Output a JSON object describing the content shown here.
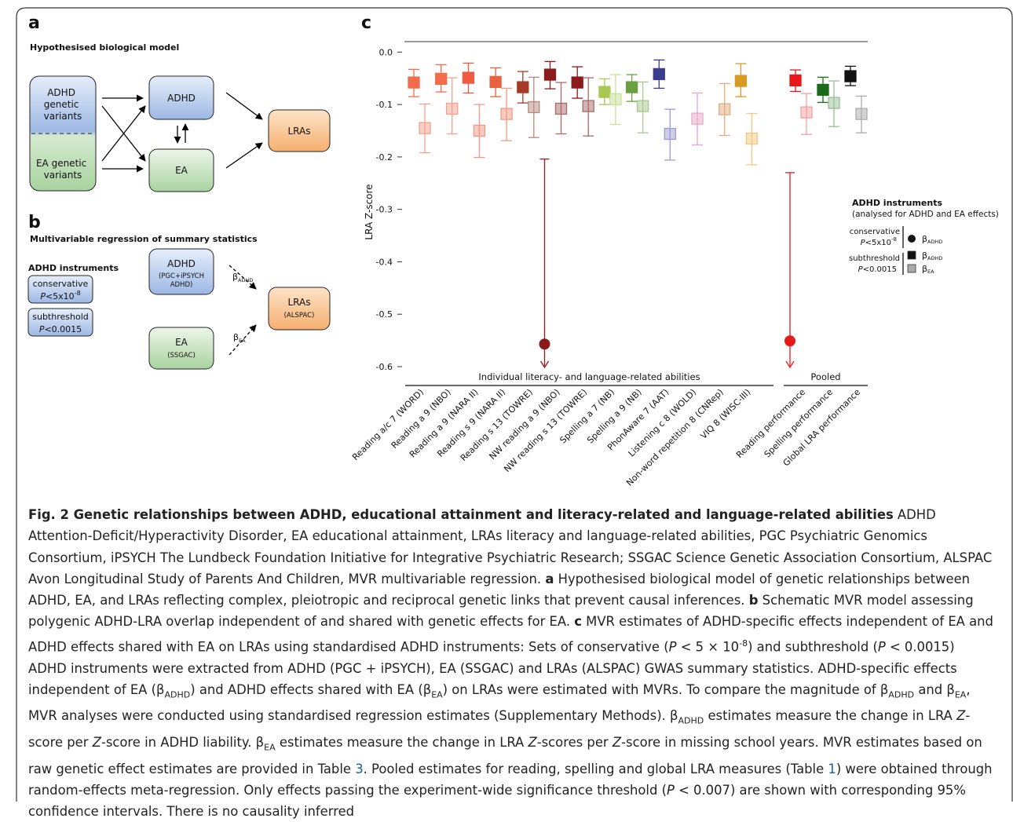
{
  "panel_a": {
    "label": "a",
    "title": "Hypothesised biological model",
    "nodes": {
      "adhd_variants": [
        "ADHD",
        "genetic",
        "variants"
      ],
      "ea_variants": [
        "EA genetic",
        "variants"
      ],
      "adhd": "ADHD",
      "ea": "EA",
      "lras": "LRAs"
    }
  },
  "panel_b": {
    "label": "b",
    "title": "Multivariable regression of summary statistics",
    "instruments_title": "ADHD instruments",
    "conservative": {
      "name": "conservative",
      "var": "P",
      "text": "<5x10",
      "exp": "-8"
    },
    "subthreshold": {
      "name": "subthreshold",
      "var": "P",
      "text": "<0.0015"
    },
    "nodes": {
      "adhd": {
        "name": "ADHD",
        "source": [
          "(PGC+iPSYCH",
          "ADHD)"
        ]
      },
      "ea": {
        "name": "EA",
        "source": [
          "(SSGAC)"
        ]
      },
      "lras": {
        "name": "LRAs",
        "source": [
          "(ALSPAC)"
        ]
      }
    },
    "beta_adhd": {
      "symbol": "β",
      "sub": "ADHD"
    },
    "beta_ea": {
      "symbol": "β",
      "sub": "EA"
    }
  },
  "chart_data": {
    "type": "errorbar",
    "label": "c",
    "y_label": "LRA Z-score",
    "categories": [
      "Reading a/c 7 (WORD)",
      "Reading a 9 (NBO)",
      "Reading a 9 (NARA II)",
      "Reading s 9 (NARA II)",
      "Reading s 13 (TOWRE)",
      "NW reading a 9 (NBO)",
      "NW reading s 13 (TOWRE)",
      "Spelling a 7 (NB)",
      "Spelling a 9 (NB)",
      "PhonAware 7 (AAT)",
      "Listening c 8 (WOLD)",
      "Non-word repetition 8 (CNRep)",
      "VIQ 8 (WISC-III)",
      "Reading performance",
      "Spelling performance",
      "Global LRA performance"
    ],
    "groups": [
      "Individual literacy- and language-related abilities",
      "Pooled"
    ],
    "ylim": [
      -0.63,
      0.02
    ],
    "yticks": [
      {
        "value": 0,
        "label": "0.0"
      },
      -0.1,
      -0.2,
      -0.3,
      -0.4,
      -0.5,
      -0.6
    ],
    "series": [
      {
        "name": "β",
        "subscript": "ADHD",
        "instruments": "conservative",
        "marker": "circle",
        "legend_color": "#111111",
        "values": [
          null,
          null,
          null,
          null,
          null,
          -0.557,
          null,
          null,
          null,
          null,
          null,
          null,
          null,
          -0.551,
          null,
          null
        ],
        "ci_upper": [
          null,
          null,
          null,
          null,
          null,
          -0.204,
          null,
          null,
          null,
          null,
          null,
          null,
          null,
          -0.23,
          null,
          null
        ],
        "colors": [
          null,
          null,
          null,
          null,
          null,
          "#8b1a1a",
          null,
          null,
          null,
          null,
          null,
          null,
          null,
          "#e8191b",
          null,
          null
        ]
      },
      {
        "name": "β",
        "subscript": "ADHD",
        "instruments": "subthreshold",
        "marker": "square",
        "legend_color": "#111111",
        "values": [
          -0.058,
          -0.051,
          -0.049,
          -0.057,
          -0.067,
          -0.043,
          -0.058,
          -0.076,
          -0.067,
          -0.042,
          null,
          null,
          -0.055,
          -0.054,
          -0.072,
          -0.046
        ],
        "ci_lower": [
          -0.085,
          -0.076,
          -0.078,
          -0.085,
          -0.097,
          -0.07,
          -0.088,
          -0.1,
          -0.094,
          -0.069,
          null,
          null,
          -0.085,
          -0.075,
          -0.096,
          -0.064
        ],
        "ci_upper": [
          -0.033,
          -0.024,
          -0.021,
          -0.03,
          -0.037,
          -0.018,
          -0.028,
          -0.051,
          -0.043,
          -0.015,
          null,
          null,
          -0.022,
          -0.034,
          -0.048,
          -0.027
        ],
        "colors": [
          "#f26b4a",
          "#f26b4a",
          "#f05a40",
          "#e8603c",
          "#a83a28",
          "#8b1a1a",
          "#8b1a1a",
          "#a8c850",
          "#6aa040",
          "#3c3c8c",
          null,
          null,
          "#d89a20",
          "#e8191b",
          "#1a6b1a",
          "#111111"
        ]
      },
      {
        "name": "β",
        "subscript": "EA",
        "instruments": "subthreshold",
        "marker": "square",
        "legend_color": "#aaaaaa",
        "values": [
          -0.145,
          -0.108,
          -0.15,
          -0.118,
          -0.105,
          -0.108,
          -0.103,
          -0.09,
          -0.103,
          -0.156,
          -0.127,
          -0.109,
          -0.165,
          -0.115,
          -0.097,
          -0.118
        ],
        "ci_lower": [
          -0.192,
          -0.156,
          -0.201,
          -0.169,
          -0.163,
          -0.156,
          -0.16,
          -0.138,
          -0.154,
          -0.206,
          -0.177,
          -0.159,
          -0.215,
          -0.157,
          -0.142,
          -0.154
        ],
        "ci_upper": [
          -0.099,
          -0.049,
          -0.1,
          -0.069,
          -0.048,
          -0.058,
          -0.049,
          -0.043,
          -0.057,
          -0.109,
          -0.078,
          -0.06,
          -0.117,
          -0.079,
          -0.055,
          -0.084
        ],
        "colors": [
          "#f5a08c",
          "#f5a08c",
          "#f29884",
          "#ee9a84",
          "#b58a80",
          "#a86a6a",
          "#a86a6a",
          "#c8e098",
          "#a8c890",
          "#9c9cd0",
          "#e8a8c8",
          "#e4ac80",
          "#f0c880",
          "#f0a0a0",
          "#98c098",
          "#aaaaaa"
        ]
      }
    ],
    "legend": {
      "title": "ADHD instruments",
      "subtitle": "(analysed for ADHD and EA effects)",
      "groups": [
        {
          "name": "conservative",
          "var": "P",
          "text": "<5x10",
          "exp": "-8"
        },
        {
          "name": "subthreshold",
          "var": "P",
          "text": "<0.0015"
        }
      ]
    }
  },
  "caption": {
    "segments": [
      {
        "t": "Fig. 2 Genetic relationships between ADHD, educational attainment and literacy-related and language-related abilities",
        "s": "bold"
      },
      {
        "t": " ADHD Attention-Deficit/Hyperactivity Disorder, EA educational attainment, LRAs literacy and language-related abilities, PGC Psychiatric Genomics Consortium, iPSYCH The Lundbeck Foundation Initiative for Integrative Psychiatric Research; SSGAC Science Genetic Association Consortium, ALSPAC Avon Longitudinal Study of Parents And Children, MVR multivariable regression. "
      },
      {
        "t": "a",
        "s": "bold"
      },
      {
        "t": " Hypothesised biological model of genetic relationships between ADHD, EA, and LRAs reflecting complex, pleiotropic and reciprocal genetic links that prevent causal inferences. "
      },
      {
        "t": "b",
        "s": "bold"
      },
      {
        "t": " Schematic MVR model assessing polygenic ADHD-LRA overlap independent of and shared with genetic effects for EA. "
      },
      {
        "t": "c",
        "s": "bold"
      },
      {
        "t": " MVR estimates of ADHD-specific effects independent of EA and ADHD effects shared with EA on LRAs using standardised ADHD instruments: Sets of conservative ("
      },
      {
        "t": "P",
        "s": "italic"
      },
      {
        "t": " < 5 × 10"
      },
      {
        "t": "-8",
        "s": "sup"
      },
      {
        "t": ") and subthreshold ("
      },
      {
        "t": "P",
        "s": "italic"
      },
      {
        "t": " < 0.0015) ADHD instruments were extracted from ADHD (PGC + iPSYCH), EA (SSGAC) and LRAs (ALSPAC) GWAS summary statistics. ADHD-specific effects independent of EA (β"
      },
      {
        "t": "ADHD",
        "s": "sub"
      },
      {
        "t": ") and ADHD effects shared with EA (β"
      },
      {
        "t": "EA",
        "s": "sub"
      },
      {
        "t": ") on LRAs were estimated with MVRs. To compare the magnitude of β"
      },
      {
        "t": "ADHD",
        "s": "sub"
      },
      {
        "t": " and β"
      },
      {
        "t": "EA",
        "s": "sub"
      },
      {
        "t": ", MVR analyses were conducted using standardised regression estimates (Supplementary Methods). β"
      },
      {
        "t": "ADHD",
        "s": "sub"
      },
      {
        "t": " estimates measure the change in LRA "
      },
      {
        "t": "Z",
        "s": "italic"
      },
      {
        "t": "-score per "
      },
      {
        "t": "Z",
        "s": "italic"
      },
      {
        "t": "-score in ADHD liability. β"
      },
      {
        "t": "EA",
        "s": "sub"
      },
      {
        "t": " estimates measure the change in LRA "
      },
      {
        "t": "Z",
        "s": "italic"
      },
      {
        "t": "-scores per "
      },
      {
        "t": "Z",
        "s": "italic"
      },
      {
        "t": "-score in missing school years. MVR estimates based on raw genetic effect estimates are provided in Table "
      },
      {
        "t": "3",
        "s": "link"
      },
      {
        "t": ". Pooled estimates for reading, spelling and global LRA measures (Table "
      },
      {
        "t": "1",
        "s": "link"
      },
      {
        "t": ") were obtained through random-effects meta-regression. Only effects passing the experiment-wide significance threshold ("
      },
      {
        "t": "P",
        "s": "italic"
      },
      {
        "t": " < 0.007) are shown with corresponding 95% confidence intervals. There is no causality inferred"
      }
    ]
  }
}
